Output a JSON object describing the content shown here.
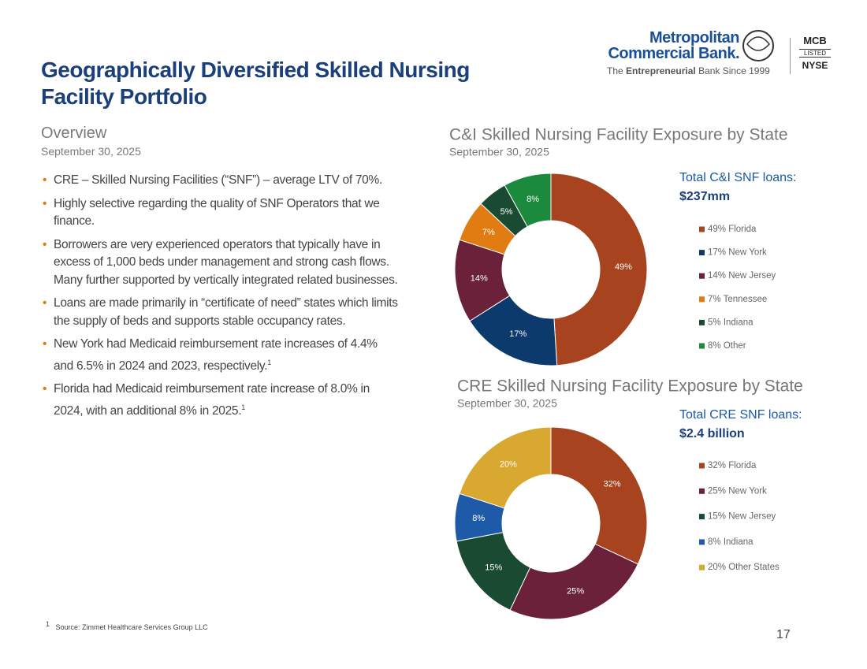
{
  "header": {
    "title": "Geographically Diversified Skilled Nursing Facility Portfolio"
  },
  "logo": {
    "name_line1": "Metropolitan",
    "name_line2": "Commercial Bank.",
    "tagline_pre": "The",
    "tagline_bold": "Entrepreneurial",
    "tagline_post": "Bank Since 1999",
    "ticker": "MCB",
    "listed": "LISTED",
    "exchange": "NYSE"
  },
  "overview": {
    "heading": "Overview",
    "date": "September 30, 2025",
    "bullets": [
      {
        "text": "CRE – Skilled Nursing Facilities (“SNF”) – average LTV of 70%."
      },
      {
        "text": "Highly selective regarding the quality of SNF Operators that we finance."
      },
      {
        "text": "Borrowers are very experienced operators that typically have in excess of 1,000 beds under management and strong cash flows. Many further supported by vertically integrated related businesses."
      },
      {
        "text": "Loans are made primarily in “certificate of need” states which limits the supply of beds and supports stable occupancy rates."
      },
      {
        "text": "New York had Medicaid reimbursement rate increases of 4.4% and 6.5% in 2024 and 2023, respectively.",
        "note": "1"
      },
      {
        "text": "Florida had Medicaid reimbursement rate increase of 8.0% in 2024, with an additional 8% in 2025.",
        "note": "1"
      }
    ]
  },
  "footnote": {
    "number": "1",
    "text": "Source: Zimmet Healthcare Services Group LLC"
  },
  "page_number": "17",
  "chart_data": [
    {
      "type": "donut",
      "title": "C&I Skilled Nursing Facility Exposure by State",
      "subtitle": "September 30, 2025",
      "total_label": "Total C&I SNF loans:",
      "total_value": "$237mm",
      "categories": [
        "49% Florida",
        "17% New York",
        "14% New Jersey",
        "7% Tennessee",
        "5% Indiana",
        "8% Other"
      ],
      "values": [
        49,
        17,
        14,
        7,
        5,
        8
      ],
      "value_labels": [
        "49%",
        "17%",
        "14%",
        "7%",
        "5%",
        "8%"
      ],
      "colors": [
        "#a8431f",
        "#0c3a6c",
        "#6b2139",
        "#e07c12",
        "#1b4a33",
        "#1b8a3c"
      ]
    },
    {
      "type": "donut",
      "title": "CRE Skilled Nursing Facility Exposure by State",
      "subtitle": "September 30, 2025",
      "total_label": "Total CRE SNF loans:",
      "total_value": "$2.4 billion",
      "categories": [
        "32% Florida",
        "25% New York",
        "15% New Jersey",
        "8% Indiana",
        "20% Other States"
      ],
      "values": [
        32,
        25,
        15,
        8,
        20
      ],
      "value_labels": [
        "32%",
        "25%",
        "15%",
        "8%",
        "20%"
      ],
      "colors": [
        "#a8431f",
        "#6b2139",
        "#1b4a33",
        "#1f5aa8",
        "#d9a830"
      ]
    }
  ]
}
